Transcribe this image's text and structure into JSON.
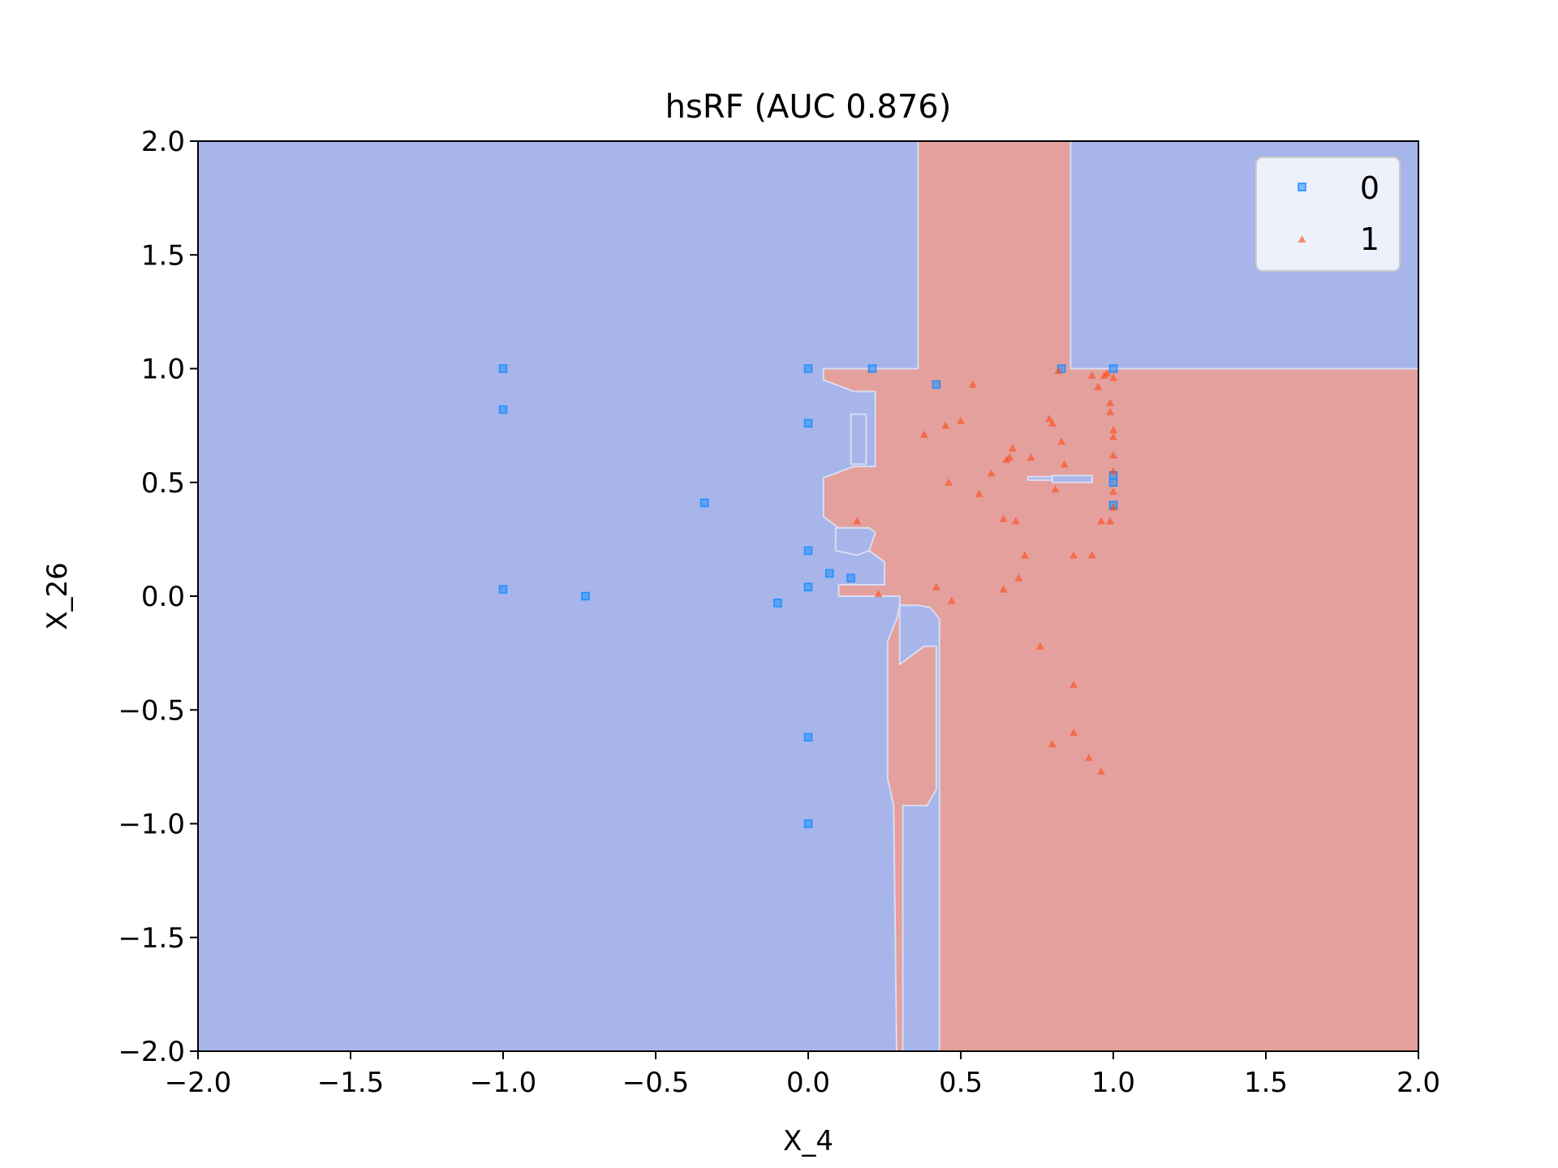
{
  "chart_data": {
    "type": "scatter",
    "title": "hsRF (AUC 0.876)",
    "xlabel": "X_4",
    "ylabel": "X_26",
    "xlim": [
      -2.0,
      2.0
    ],
    "ylim": [
      -2.0,
      2.0
    ],
    "grid": false,
    "legend_position": "top-right",
    "x_ticks": [
      -2.0,
      -1.5,
      -1.0,
      -0.5,
      0.0,
      0.5,
      1.0,
      1.5,
      2.0
    ],
    "x_tick_labels": [
      "−2.0",
      "−1.5",
      "−1.0",
      "−0.5",
      "0.0",
      "0.5",
      "1.0",
      "1.5",
      "2.0"
    ],
    "y_ticks": [
      -2.0,
      -1.5,
      -1.0,
      -0.5,
      0.0,
      0.5,
      1.0,
      1.5,
      2.0
    ],
    "y_tick_labels": [
      "−2.0",
      "−1.5",
      "−1.0",
      "−0.5",
      "0.0",
      "0.5",
      "1.0",
      "1.5",
      "2.0"
    ],
    "colors": {
      "region_0": "#a7b5ea",
      "region_1": "#e4a09c",
      "boundary": "#d9dcf2",
      "class_0": "#1e8fff",
      "class_1": "#ff4a14",
      "legend_bg": "#eef0fb",
      "legend_edge": "#cccccc"
    },
    "class1_region": [
      [
        [
          0.36,
          2.0
        ],
        [
          0.86,
          2.0
        ],
        [
          0.86,
          1.0
        ],
        [
          2.0,
          1.0
        ],
        [
          2.0,
          -2.0
        ],
        [
          0.43,
          -2.0
        ],
        [
          0.43,
          -0.1
        ],
        [
          0.4,
          -0.05
        ],
        [
          0.36,
          -0.04
        ],
        [
          0.3,
          -0.04
        ],
        [
          0.29,
          -0.1
        ],
        [
          0.26,
          -0.2
        ],
        [
          0.26,
          -0.8
        ],
        [
          0.28,
          -0.92
        ],
        [
          0.29,
          -2.0
        ],
        [
          0.31,
          -2.0
        ],
        [
          0.31,
          -0.92
        ],
        [
          0.39,
          -0.92
        ],
        [
          0.42,
          -0.85
        ],
        [
          0.42,
          -0.22
        ],
        [
          0.38,
          -0.22
        ],
        [
          0.35,
          -0.25
        ],
        [
          0.3,
          -0.3
        ],
        [
          0.3,
          0.0
        ],
        [
          0.22,
          0.0
        ],
        [
          0.15,
          0.0
        ],
        [
          0.1,
          0.0
        ],
        [
          0.1,
          0.05
        ],
        [
          0.25,
          0.05
        ],
        [
          0.25,
          0.15
        ],
        [
          0.2,
          0.2
        ],
        [
          0.2,
          0.3
        ],
        [
          0.1,
          0.3
        ],
        [
          0.05,
          0.35
        ],
        [
          0.05,
          0.52
        ],
        [
          0.15,
          0.57
        ],
        [
          0.22,
          0.57
        ],
        [
          0.22,
          0.9
        ],
        [
          0.15,
          0.9
        ],
        [
          0.05,
          0.95
        ],
        [
          0.05,
          1.0
        ],
        [
          0.36,
          1.0
        ]
      ]
    ],
    "class0_holes": [
      [
        [
          0.14,
          0.8
        ],
        [
          0.19,
          0.8
        ],
        [
          0.19,
          0.58
        ],
        [
          0.14,
          0.58
        ]
      ],
      [
        [
          0.09,
          0.3
        ],
        [
          0.2,
          0.3
        ],
        [
          0.22,
          0.28
        ],
        [
          0.2,
          0.2
        ],
        [
          0.16,
          0.18
        ],
        [
          0.09,
          0.2
        ]
      ],
      [
        [
          0.72,
          0.525
        ],
        [
          0.82,
          0.525
        ],
        [
          0.82,
          0.51
        ],
        [
          0.72,
          0.51
        ]
      ],
      [
        [
          0.8,
          0.53
        ],
        [
          0.93,
          0.53
        ],
        [
          0.93,
          0.5
        ],
        [
          0.8,
          0.5
        ]
      ]
    ],
    "series": [
      {
        "name": "0",
        "marker": "square",
        "points": [
          [
            -1.0,
            1.0
          ],
          [
            -1.0,
            0.82
          ],
          [
            -1.0,
            0.03
          ],
          [
            -0.73,
            0.0
          ],
          [
            -0.34,
            0.41
          ],
          [
            -0.1,
            -0.03
          ],
          [
            0.0,
            1.0
          ],
          [
            0.0,
            0.76
          ],
          [
            0.0,
            0.2
          ],
          [
            0.0,
            0.04
          ],
          [
            0.0,
            -0.62
          ],
          [
            0.0,
            -1.0
          ],
          [
            0.07,
            0.1
          ],
          [
            0.14,
            0.08
          ],
          [
            0.21,
            1.0
          ],
          [
            0.42,
            0.93
          ],
          [
            0.83,
            1.0
          ],
          [
            1.0,
            1.0
          ],
          [
            1.0,
            0.53
          ],
          [
            1.0,
            0.5
          ],
          [
            1.0,
            0.4
          ]
        ]
      },
      {
        "name": "1",
        "marker": "triangle",
        "points": [
          [
            0.16,
            0.33
          ],
          [
            0.23,
            0.01
          ],
          [
            0.38,
            0.71
          ],
          [
            0.42,
            0.04
          ],
          [
            0.45,
            0.75
          ],
          [
            0.46,
            0.5
          ],
          [
            0.47,
            -0.02
          ],
          [
            0.5,
            0.77
          ],
          [
            0.54,
            0.93
          ],
          [
            0.56,
            0.45
          ],
          [
            0.6,
            0.54
          ],
          [
            0.64,
            0.34
          ],
          [
            0.64,
            0.03
          ],
          [
            0.65,
            0.6
          ],
          [
            0.66,
            0.61
          ],
          [
            0.67,
            0.65
          ],
          [
            0.68,
            0.33
          ],
          [
            0.69,
            0.08
          ],
          [
            0.71,
            0.18
          ],
          [
            0.73,
            0.61
          ],
          [
            0.76,
            -0.22
          ],
          [
            0.79,
            0.78
          ],
          [
            0.8,
            0.76
          ],
          [
            0.8,
            -0.65
          ],
          [
            0.81,
            0.47
          ],
          [
            0.82,
            0.99
          ],
          [
            0.83,
            0.68
          ],
          [
            0.84,
            0.58
          ],
          [
            0.87,
            0.18
          ],
          [
            0.87,
            -0.39
          ],
          [
            0.87,
            -0.6
          ],
          [
            0.92,
            -0.71
          ],
          [
            0.93,
            0.18
          ],
          [
            0.93,
            0.97
          ],
          [
            0.95,
            0.92
          ],
          [
            0.96,
            -0.77
          ],
          [
            0.96,
            0.33
          ],
          [
            0.97,
            0.97
          ],
          [
            0.98,
            0.98
          ],
          [
            0.99,
            0.85
          ],
          [
            0.99,
            0.81
          ],
          [
            0.99,
            0.33
          ],
          [
            1.0,
            0.96
          ],
          [
            1.0,
            0.73
          ],
          [
            1.0,
            0.7
          ],
          [
            1.0,
            0.62
          ],
          [
            1.0,
            0.55
          ],
          [
            1.0,
            0.46
          ],
          [
            1.0,
            0.39
          ]
        ]
      }
    ]
  }
}
